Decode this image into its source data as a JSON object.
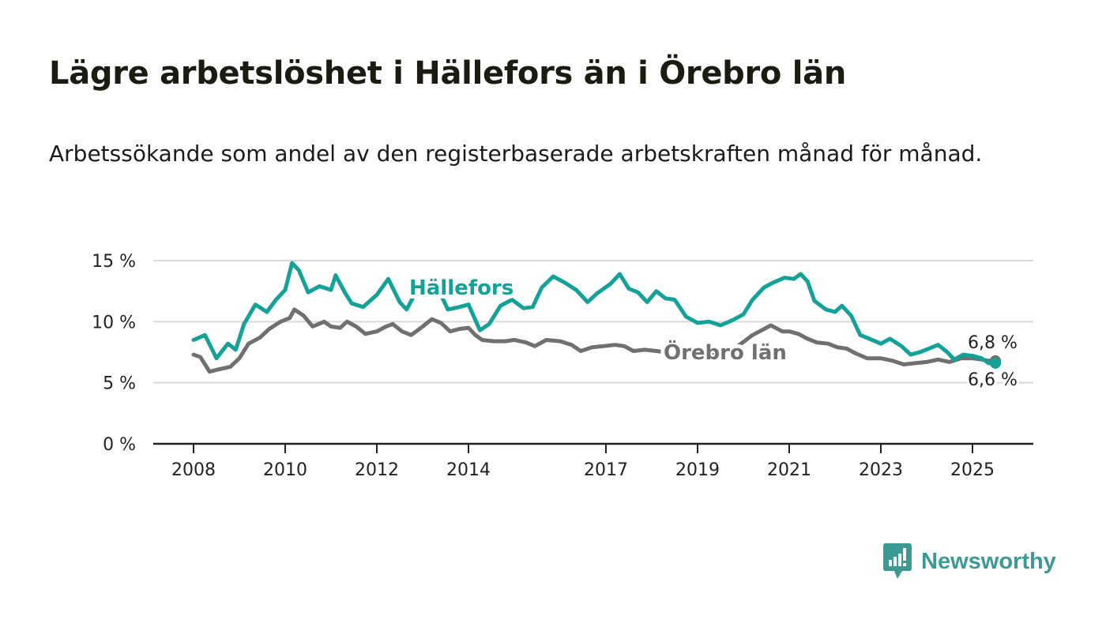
{
  "header": {
    "title": "Lägre arbetslöshet i Hällefors än i Örebro län",
    "subtitle": "Arbetssökande som andel av den registerbaserade arbetskraften månad för månad."
  },
  "brand": {
    "name": "Newsworthy",
    "color": "#3c9a93"
  },
  "colors": {
    "hallefors": "#13a198",
    "orebro": "#707070",
    "grid": "#d9d9d9",
    "axis": "#222222"
  },
  "chart_data": {
    "type": "line",
    "title": "Lägre arbetslöshet i Hällefors än i Örebro län",
    "subtitle": "Arbetssökande som andel av den registerbaserade arbetskraften månad för månad.",
    "xlabel": "",
    "ylabel": "",
    "ylim": [
      0,
      15
    ],
    "xlim": [
      2008.0,
      2025.5
    ],
    "y_ticks": [
      {
        "value": 0,
        "label": "0 %"
      },
      {
        "value": 5,
        "label": "5 %"
      },
      {
        "value": 10,
        "label": "10 %"
      },
      {
        "value": 15,
        "label": "15 %"
      }
    ],
    "x_ticks": [
      {
        "value": 2008,
        "label": "2008"
      },
      {
        "value": 2010,
        "label": "2010"
      },
      {
        "value": 2012,
        "label": "2012"
      },
      {
        "value": 2014,
        "label": "2014"
      },
      {
        "value": 2017,
        "label": "2017"
      },
      {
        "value": 2019,
        "label": "2019"
      },
      {
        "value": 2021,
        "label": "2021"
      },
      {
        "value": 2023,
        "label": "2023"
      },
      {
        "value": 2025,
        "label": "2025"
      }
    ],
    "grid": true,
    "legend": "inline labels",
    "series": [
      {
        "name": "Hällefors",
        "color": "#13a198",
        "end_label": "6,6 %",
        "points": [
          [
            2008.0,
            8.5
          ],
          [
            2008.25,
            8.9
          ],
          [
            2008.5,
            7.0
          ],
          [
            2008.75,
            8.2
          ],
          [
            2008.92,
            7.7
          ],
          [
            2009.1,
            9.8
          ],
          [
            2009.35,
            11.4
          ],
          [
            2009.6,
            10.8
          ],
          [
            2009.8,
            11.8
          ],
          [
            2010.0,
            12.6
          ],
          [
            2010.15,
            14.8
          ],
          [
            2010.3,
            14.2
          ],
          [
            2010.5,
            12.4
          ],
          [
            2010.75,
            12.9
          ],
          [
            2011.0,
            12.6
          ],
          [
            2011.1,
            13.8
          ],
          [
            2011.3,
            12.4
          ],
          [
            2011.45,
            11.5
          ],
          [
            2011.7,
            11.2
          ],
          [
            2012.0,
            12.2
          ],
          [
            2012.25,
            13.5
          ],
          [
            2012.5,
            11.6
          ],
          [
            2012.65,
            11.0
          ],
          [
            2012.78,
            11.9
          ],
          [
            2013.0,
            13.6
          ],
          [
            2013.3,
            13.0
          ],
          [
            2013.55,
            11.0
          ],
          [
            2013.8,
            11.2
          ],
          [
            2014.0,
            11.4
          ],
          [
            2014.25,
            9.3
          ],
          [
            2014.45,
            9.8
          ],
          [
            2014.7,
            11.3
          ],
          [
            2014.95,
            11.8
          ],
          [
            2015.2,
            11.1
          ],
          [
            2015.4,
            11.2
          ],
          [
            2015.6,
            12.8
          ],
          [
            2015.85,
            13.7
          ],
          [
            2016.1,
            13.2
          ],
          [
            2016.35,
            12.6
          ],
          [
            2016.6,
            11.6
          ],
          [
            2016.8,
            12.3
          ],
          [
            2017.1,
            13.1
          ],
          [
            2017.3,
            13.9
          ],
          [
            2017.5,
            12.7
          ],
          [
            2017.7,
            12.4
          ],
          [
            2017.9,
            11.6
          ],
          [
            2018.1,
            12.5
          ],
          [
            2018.3,
            11.9
          ],
          [
            2018.5,
            11.8
          ],
          [
            2018.75,
            10.4
          ],
          [
            2019.0,
            9.9
          ],
          [
            2019.25,
            10.0
          ],
          [
            2019.5,
            9.7
          ],
          [
            2019.75,
            10.1
          ],
          [
            2020.0,
            10.6
          ],
          [
            2020.2,
            11.8
          ],
          [
            2020.45,
            12.8
          ],
          [
            2020.65,
            13.2
          ],
          [
            2020.9,
            13.6
          ],
          [
            2021.1,
            13.5
          ],
          [
            2021.25,
            13.9
          ],
          [
            2021.4,
            13.3
          ],
          [
            2021.55,
            11.7
          ],
          [
            2021.8,
            11.0
          ],
          [
            2022.0,
            10.8
          ],
          [
            2022.15,
            11.3
          ],
          [
            2022.35,
            10.5
          ],
          [
            2022.55,
            8.9
          ],
          [
            2022.75,
            8.6
          ],
          [
            2023.0,
            8.2
          ],
          [
            2023.2,
            8.6
          ],
          [
            2023.45,
            8.0
          ],
          [
            2023.65,
            7.3
          ],
          [
            2023.85,
            7.5
          ],
          [
            2024.05,
            7.8
          ],
          [
            2024.25,
            8.1
          ],
          [
            2024.45,
            7.5
          ],
          [
            2024.6,
            6.9
          ],
          [
            2024.8,
            7.3
          ],
          [
            2025.0,
            7.2
          ],
          [
            2025.2,
            7.0
          ],
          [
            2025.35,
            6.6
          ],
          [
            2025.5,
            6.6
          ]
        ]
      },
      {
        "name": "Örebro län",
        "color": "#707070",
        "end_label": "6,8 %",
        "points": [
          [
            2008.0,
            7.3
          ],
          [
            2008.15,
            7.1
          ],
          [
            2008.35,
            5.9
          ],
          [
            2008.55,
            6.1
          ],
          [
            2008.8,
            6.3
          ],
          [
            2009.0,
            7.0
          ],
          [
            2009.2,
            8.2
          ],
          [
            2009.45,
            8.7
          ],
          [
            2009.65,
            9.4
          ],
          [
            2009.9,
            10.0
          ],
          [
            2010.1,
            10.3
          ],
          [
            2010.2,
            11.0
          ],
          [
            2010.4,
            10.5
          ],
          [
            2010.6,
            9.6
          ],
          [
            2010.85,
            10.0
          ],
          [
            2011.0,
            9.6
          ],
          [
            2011.2,
            9.5
          ],
          [
            2011.35,
            10.0
          ],
          [
            2011.55,
            9.6
          ],
          [
            2011.75,
            9.0
          ],
          [
            2012.0,
            9.2
          ],
          [
            2012.2,
            9.6
          ],
          [
            2012.35,
            9.8
          ],
          [
            2012.55,
            9.2
          ],
          [
            2012.75,
            8.9
          ],
          [
            2013.0,
            9.6
          ],
          [
            2013.2,
            10.2
          ],
          [
            2013.4,
            9.9
          ],
          [
            2013.6,
            9.2
          ],
          [
            2013.8,
            9.4
          ],
          [
            2014.0,
            9.5
          ],
          [
            2014.15,
            8.9
          ],
          [
            2014.3,
            8.5
          ],
          [
            2014.55,
            8.4
          ],
          [
            2014.8,
            8.4
          ],
          [
            2015.0,
            8.5
          ],
          [
            2015.25,
            8.3
          ],
          [
            2015.45,
            8.0
          ],
          [
            2015.7,
            8.5
          ],
          [
            2016.0,
            8.4
          ],
          [
            2016.25,
            8.1
          ],
          [
            2016.45,
            7.6
          ],
          [
            2016.7,
            7.9
          ],
          [
            2016.95,
            8.0
          ],
          [
            2017.2,
            8.1
          ],
          [
            2017.4,
            8.0
          ],
          [
            2017.6,
            7.6
          ],
          [
            2017.85,
            7.7
          ],
          [
            2018.1,
            7.6
          ],
          [
            2018.3,
            7.5
          ],
          [
            2018.5,
            7.4
          ],
          [
            2018.8,
            7.3
          ],
          [
            2019.05,
            7.2
          ],
          [
            2019.35,
            7.3
          ],
          [
            2019.65,
            7.5
          ],
          [
            2019.95,
            8.2
          ],
          [
            2020.2,
            8.9
          ],
          [
            2020.4,
            9.3
          ],
          [
            2020.6,
            9.7
          ],
          [
            2020.85,
            9.2
          ],
          [
            2021.0,
            9.2
          ],
          [
            2021.2,
            9.0
          ],
          [
            2021.4,
            8.6
          ],
          [
            2021.6,
            8.3
          ],
          [
            2021.85,
            8.2
          ],
          [
            2022.05,
            7.9
          ],
          [
            2022.25,
            7.8
          ],
          [
            2022.45,
            7.4
          ],
          [
            2022.7,
            7.0
          ],
          [
            2023.0,
            7.0
          ],
          [
            2023.25,
            6.8
          ],
          [
            2023.5,
            6.5
          ],
          [
            2023.75,
            6.6
          ],
          [
            2024.0,
            6.7
          ],
          [
            2024.25,
            6.9
          ],
          [
            2024.5,
            6.7
          ],
          [
            2024.75,
            7.0
          ],
          [
            2025.0,
            7.0
          ],
          [
            2025.2,
            6.9
          ],
          [
            2025.35,
            6.8
          ],
          [
            2025.5,
            6.8
          ]
        ]
      }
    ]
  }
}
